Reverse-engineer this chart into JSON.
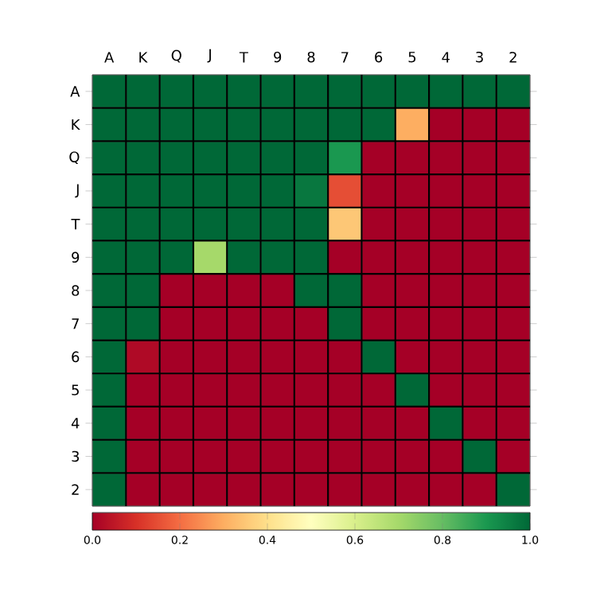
{
  "chart_data": {
    "type": "heatmap",
    "categories": [
      "A",
      "K",
      "Q",
      "J",
      "T",
      "9",
      "8",
      "7",
      "6",
      "5",
      "4",
      "3",
      "2"
    ],
    "y_categories": [
      "A",
      "K",
      "Q",
      "J",
      "T",
      "9",
      "8",
      "7",
      "6",
      "5",
      "4",
      "3",
      "2"
    ],
    "cells": [
      [
        1,
        1,
        1,
        1,
        1,
        1,
        1,
        1,
        1,
        1,
        1,
        1,
        1
      ],
      [
        1,
        1,
        1,
        1,
        1,
        1,
        1,
        1,
        1,
        0.3,
        0,
        0,
        0
      ],
      [
        1,
        1,
        1,
        1,
        1,
        1,
        1,
        0.9,
        0,
        0,
        0,
        0,
        0
      ],
      [
        1,
        1,
        1,
        1,
        1,
        1,
        0.97,
        0.15,
        0,
        0,
        0,
        0,
        0
      ],
      [
        1,
        1,
        1,
        1,
        1,
        1,
        1,
        0.35,
        0,
        0,
        0,
        0,
        0
      ],
      [
        1,
        1,
        1,
        0.7,
        1,
        1,
        1,
        0,
        0,
        0,
        0,
        0,
        0
      ],
      [
        1,
        1,
        0,
        0,
        0,
        0,
        1,
        1,
        0,
        0,
        0,
        0,
        0
      ],
      [
        1,
        1,
        0,
        0,
        0,
        0,
        0,
        1,
        0,
        0,
        0,
        0,
        0
      ],
      [
        1,
        0.02,
        0,
        0,
        0,
        0,
        0,
        0,
        1,
        0,
        0,
        0,
        0
      ],
      [
        1,
        0,
        0,
        0,
        0,
        0,
        0,
        0,
        0,
        1,
        0,
        0,
        0
      ],
      [
        1,
        0,
        0,
        0,
        0,
        0,
        0,
        0,
        0,
        0,
        1,
        0,
        0
      ],
      [
        1,
        0,
        0,
        0,
        0,
        0,
        0,
        0,
        0,
        0,
        0,
        1,
        0
      ],
      [
        1,
        0,
        0,
        0,
        0,
        0,
        0,
        0,
        0,
        0,
        0,
        0,
        1
      ]
    ],
    "clim": [
      0,
      1
    ],
    "cticks": [
      {
        "value": 0,
        "label": "0.0"
      },
      {
        "value": 0.2,
        "label": "0.2"
      },
      {
        "value": 0.4,
        "label": "0.4"
      },
      {
        "value": 0.6,
        "label": "0.6"
      },
      {
        "value": 0.8,
        "label": "0.8"
      },
      {
        "value": 1,
        "label": "1.0"
      }
    ]
  }
}
